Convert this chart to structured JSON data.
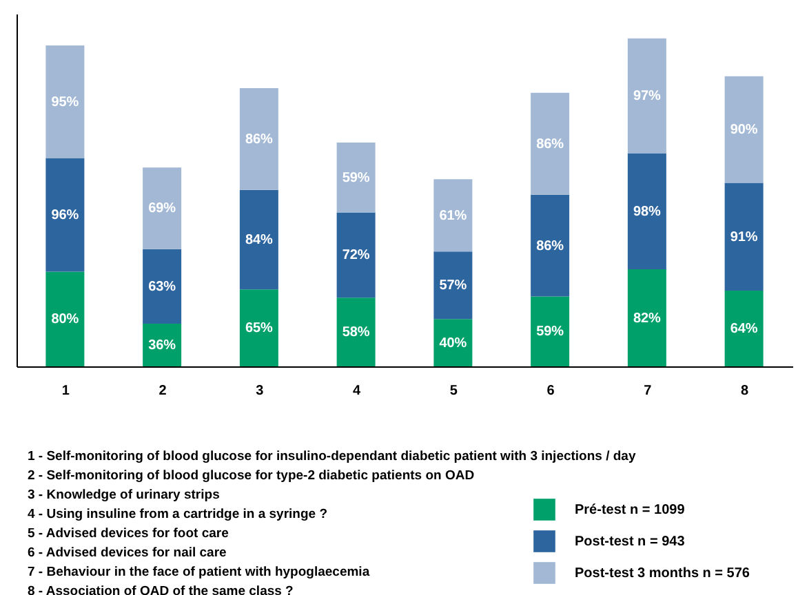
{
  "chart_data": {
    "type": "bar",
    "stacked": true,
    "categories": [
      "1",
      "2",
      "3",
      "4",
      "5",
      "6",
      "7",
      "8"
    ],
    "series": [
      {
        "name": "Pré-test n = 1099",
        "color": "#00a06b",
        "values": [
          80,
          36,
          65,
          58,
          40,
          59,
          82,
          64
        ],
        "value_labels": [
          "80%",
          "36%",
          "65%",
          "58%",
          "40%",
          "59%",
          "82%",
          "64%"
        ]
      },
      {
        "name": "Post-test n = 943",
        "color": "#2d659f",
        "values": [
          96,
          63,
          84,
          72,
          57,
          86,
          98,
          91
        ],
        "value_labels": [
          "96%",
          "63%",
          "84%",
          "72%",
          "57%",
          "86%",
          "98%",
          "91%"
        ]
      },
      {
        "name": "Post-test 3 months n = 576",
        "color": "#a2b8d5",
        "values": [
          95,
          69,
          86,
          59,
          61,
          86,
          97,
          90
        ],
        "value_labels": [
          "95%",
          "69%",
          "86%",
          "59%",
          "61%",
          "86%",
          "97%",
          "90%"
        ]
      }
    ],
    "legend": "bottom right",
    "grid": false,
    "tick_labels": "x",
    "annotations": [
      "1 - Self-monitoring of blood glucose for insulino-dependant diabetic patient with 3 injections / day",
      "2 - Self-monitoring of blood glucose for type-2 diabetic patients on OAD",
      "3 - Knowledge of urinary strips",
      "4 - Using insuline from a cartridge in a syringe ?",
      "5 - Advised devices for foot care",
      "6 - Advised devices for nail care",
      "7 - Behaviour in the face of patient with hypoglaecemia",
      "8 - Association of OAD of the same class ?"
    ]
  }
}
